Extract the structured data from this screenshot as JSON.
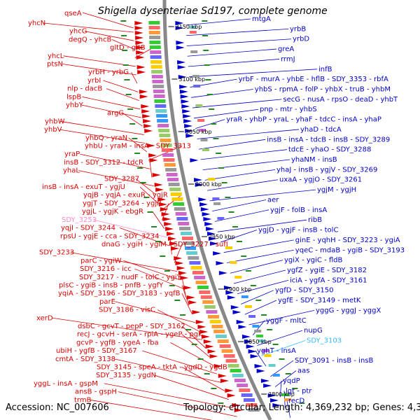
{
  "header": {
    "qse_label": "qseA",
    "title": "Shigella dysenteriae Sd197, complete genome"
  },
  "footer": {
    "accession": "Accession: NC_007606",
    "summary": "Topology: circular; Length: 4,369,232 bp; Genes: 4,377"
  },
  "colors": {
    "reverse_strand": "#dd0000",
    "forward_strand": "#0000cc",
    "highlight_pink": "#ff88cc",
    "highlight_cyan": "#33bbff",
    "backbone": "#888888",
    "tick": "#228822"
  },
  "ticks": [
    {
      "label": "3150 kbp"
    },
    {
      "label": "3100 kbp"
    },
    {
      "label": "3050 kbp"
    },
    {
      "label": "3000 kbp"
    },
    {
      "label": "2950 kbp"
    },
    {
      "label": "2900 kbp"
    },
    {
      "label": "2850 kbp"
    },
    {
      "label": "2800 kbp"
    }
  ],
  "left_labels": [
    "yhcN",
    "yhcG",
    "degQ - yhcB",
    "gltD - gltB",
    "yhcL",
    "ptsN",
    "yrbH - yrbG",
    "yrbI",
    "nlp - dacB",
    "lspB",
    "yhbY",
    "argG",
    "yhbW",
    "yhbV",
    "yhbQ - yraN",
    "yhbU - yraM - insA - SDY_3313",
    "yraP",
    "insB - SDY_3312 - tdcR",
    "yhaL",
    "SDY_3287",
    "insB - insA - exuT - ygjU",
    "yqjB - yqjA - exuR - ygjR",
    "ygjT - SDY_3264 - ygjP",
    "ygjL - ygjK - ebgR",
    "SDY_3253",
    "yqjI - SDY_3244",
    "rpsU - ygjE - cca - SDY_3234",
    "dnaG - ygiH - ygiM - SDY_3227 - sufI",
    "SDY_3233",
    "parC - ygiW",
    "SDY_3216 - icc",
    "SDY_3217 - nudF - tolC - ygiY",
    "plsC - ygiB - insB - pnfB - ygfY",
    "yqiA - SDY_3196 - SDY_3183 - yqfB",
    "parE",
    "SDY_3186 - visC",
    "xerD",
    "dsbC - gcvT - pepP - SDY_3162",
    "recJ - gcvH - serA - rpiA - ygeP - pgk",
    "gcvP - ygfB - ygeA - fba",
    "ubiH - ygfB - SDY_3167",
    "cmtA - SDY_3138",
    "SDY_3145 - speA - tktA - ygdD - ygdB",
    "SDY_3135 - ygdN",
    "yggL - insA - gspM",
    "ansB - gspH",
    "trmB"
  ],
  "right_labels": [
    "mtgA",
    "yrbB",
    "yrbD",
    "greA",
    "rrmJ",
    "infB",
    "yrbF - murA - yhbE - hflB - SDY_3353 - rbfA",
    "yhbS - rpmA - folP - yhbX - truB - yhbM",
    "secG - nusA - rpsO - deaD - yhbT",
    "pnp - mtr - yhbS",
    "yraR - yhbP - yraL - yhaF - tdcC - insA - yhaP",
    "yhaD - tdcA",
    "insB - insA - tdcB - insB - SDY_3289",
    "tdcE - yhaO - SDY_3288",
    "yhaNM - insB",
    "yhaJ - insB - ygjV - SDY_3269",
    "uxaA - ygjO - SDY_3261",
    "ygjM - ygjH",
    "aer",
    "ygjF - folB - insA",
    "ribB",
    "ygjD - ygjF - insB - tolC",
    "ginE - yqhH - SDY_3223 - ygiA",
    "yqeC - mdaB - ygiB - SDY_3193",
    "ygiX - ygiC - fldB",
    "ygfZ - ygiE - SDY_3182",
    "iciA - ygfA - SDY_3161",
    "ygfD - SDY_3150",
    "ygfE - SDY_3149 - metK",
    "yggG - yggJ - yggX",
    "yggF - mltC",
    "nupG",
    "SDY_3103",
    "yghT - insA",
    "SDY_3091 - insB - insB",
    "aas",
    "yqdP",
    "lgt - ptr",
    "recD"
  ]
}
